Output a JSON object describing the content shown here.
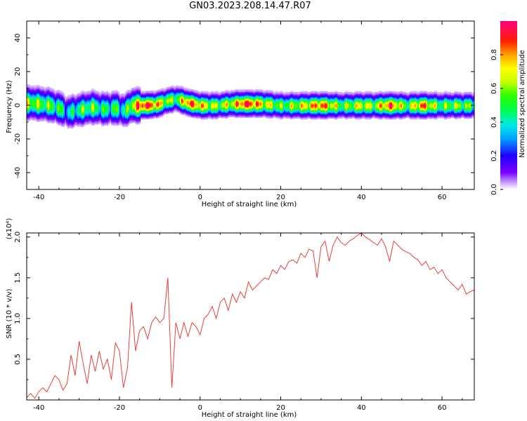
{
  "title": "GN03.2023.208.14.47.R07",
  "colors": {
    "snr_line": "#e8403a",
    "frame": "#000000",
    "background": "#ffffff"
  },
  "chart_data": [
    {
      "type": "heatmap",
      "xlabel": "Height of straight line (km)",
      "ylabel": "Frequency (Hz)",
      "xlim": [
        -43,
        68
      ],
      "ylim": [
        -50,
        50
      ],
      "xticks": [
        "-40",
        "-20",
        "0",
        "20",
        "40",
        "60"
      ],
      "yticks": [
        "40",
        "20",
        "0",
        "-20",
        "-40"
      ],
      "colorbar": {
        "label": "Normalized spectral amplitude",
        "range": [
          0,
          1
        ],
        "ticks": [
          "0.0",
          "0.2",
          "0.4",
          "0.6",
          "0.8"
        ]
      },
      "ridge": [
        {
          "h": -42,
          "f": 1.5,
          "a": 0.62
        },
        {
          "h": -38,
          "f": 0.5,
          "a": 0.55
        },
        {
          "h": -35,
          "f": -1.5,
          "a": 0.5
        },
        {
          "h": -33,
          "f": -4.0,
          "a": 0.35
        },
        {
          "h": -30,
          "f": -2.5,
          "a": 0.5
        },
        {
          "h": -27,
          "f": -1.0,
          "a": 0.55
        },
        {
          "h": -24,
          "f": -2.0,
          "a": 0.45
        },
        {
          "h": -21,
          "f": -1.5,
          "a": 0.5
        },
        {
          "h": -19,
          "f": -3.0,
          "a": 0.4
        },
        {
          "h": -17,
          "f": 0.0,
          "a": 0.7
        },
        {
          "h": -14,
          "f": 0.0,
          "a": 0.95
        },
        {
          "h": -11,
          "f": 0.5,
          "a": 0.8
        },
        {
          "h": -8,
          "f": 3.0,
          "a": 0.6
        },
        {
          "h": -6,
          "f": 4.0,
          "a": 0.55
        },
        {
          "h": -3,
          "f": 1.5,
          "a": 0.9
        },
        {
          "h": 0,
          "f": 0.0,
          "a": 0.75
        },
        {
          "h": 4,
          "f": 0.0,
          "a": 0.6
        },
        {
          "h": 8,
          "f": 1.0,
          "a": 0.7
        },
        {
          "h": 11,
          "f": 1.0,
          "a": 0.95
        },
        {
          "h": 15,
          "f": 1.0,
          "a": 0.75
        },
        {
          "h": 20,
          "f": 0.0,
          "a": 0.55
        },
        {
          "h": 24,
          "f": 0.0,
          "a": 0.65
        },
        {
          "h": 30,
          "f": 0.0,
          "a": 0.85
        },
        {
          "h": 35,
          "f": 0.0,
          "a": 0.55
        },
        {
          "h": 40,
          "f": 0.0,
          "a": 0.7
        },
        {
          "h": 43,
          "f": 0.0,
          "a": 0.6
        },
        {
          "h": 47,
          "f": 0.0,
          "a": 0.9
        },
        {
          "h": 51,
          "f": 0.0,
          "a": 0.55
        },
        {
          "h": 55,
          "f": 0.0,
          "a": 0.85
        },
        {
          "h": 59,
          "f": 0.0,
          "a": 0.55
        },
        {
          "h": 63,
          "f": 0.0,
          "a": 0.6
        },
        {
          "h": 67,
          "f": 0.0,
          "a": 0.55
        }
      ]
    },
    {
      "type": "line",
      "xlabel": "Height of straight line (km)",
      "ylabel": "SNR (10 * v/v)",
      "y_multiplier": "(x10⁴)",
      "xlim": [
        -43,
        68
      ],
      "ylim": [
        0,
        2.05
      ],
      "xticks": [
        "-40",
        "-20",
        "0",
        "20",
        "40",
        "60"
      ],
      "yticks": [
        "2.0",
        "1.5",
        "1.0",
        "0.5"
      ],
      "series": [
        {
          "x": [
            -43,
            -42,
            -41,
            -40,
            -39,
            -38,
            -37,
            -36,
            -35,
            -34,
            -33,
            -32,
            -31,
            -30,
            -29,
            -28,
            -27,
            -26,
            -25,
            -24,
            -23,
            -22,
            -21,
            -20,
            -19,
            -18,
            -17,
            -16,
            -15,
            -14,
            -13,
            -12,
            -11,
            -10,
            -9,
            -8,
            -7,
            -6,
            -5,
            -4,
            -3,
            -2,
            -1,
            0,
            1,
            2,
            3,
            4,
            5,
            6,
            7,
            8,
            9,
            10,
            11,
            12,
            13,
            14,
            15,
            16,
            17,
            18,
            19,
            20,
            21,
            22,
            23,
            24,
            25,
            26,
            27,
            28,
            29,
            30,
            31,
            32,
            33,
            34,
            35,
            36,
            37,
            38,
            39,
            40,
            41,
            42,
            43,
            44,
            45,
            46,
            47,
            48,
            49,
            50,
            51,
            52,
            53,
            54,
            55,
            56,
            57,
            58,
            59,
            60,
            61,
            62,
            63,
            64,
            65,
            66,
            67,
            68
          ],
          "values": [
            0.03,
            0.08,
            0.02,
            0.1,
            0.15,
            0.1,
            0.2,
            0.3,
            0.25,
            0.12,
            0.2,
            0.55,
            0.3,
            0.72,
            0.45,
            0.2,
            0.55,
            0.35,
            0.6,
            0.38,
            0.5,
            0.25,
            0.7,
            0.6,
            0.15,
            0.4,
            1.2,
            0.6,
            0.85,
            0.9,
            0.75,
            0.95,
            1.02,
            0.95,
            1.0,
            1.5,
            0.15,
            0.95,
            0.75,
            0.95,
            0.78,
            0.95,
            0.9,
            0.8,
            1.0,
            1.05,
            1.15,
            1.0,
            1.2,
            1.25,
            1.1,
            1.3,
            1.2,
            1.33,
            1.25,
            1.45,
            1.35,
            1.4,
            1.45,
            1.5,
            1.48,
            1.6,
            1.55,
            1.65,
            1.6,
            1.7,
            1.72,
            1.68,
            1.8,
            1.75,
            1.85,
            1.83,
            1.5,
            1.88,
            1.95,
            1.7,
            1.9,
            2.0,
            1.93,
            1.9,
            1.95,
            1.98,
            2.02,
            2.05,
            2.0,
            1.97,
            1.93,
            1.9,
            1.98,
            1.88,
            1.7,
            1.95,
            1.9,
            1.85,
            1.82,
            1.8,
            1.75,
            1.72,
            1.65,
            1.7,
            1.6,
            1.63,
            1.55,
            1.6,
            1.5,
            1.45,
            1.4,
            1.35,
            1.42,
            1.3,
            1.33,
            1.35
          ]
        }
      ]
    }
  ]
}
